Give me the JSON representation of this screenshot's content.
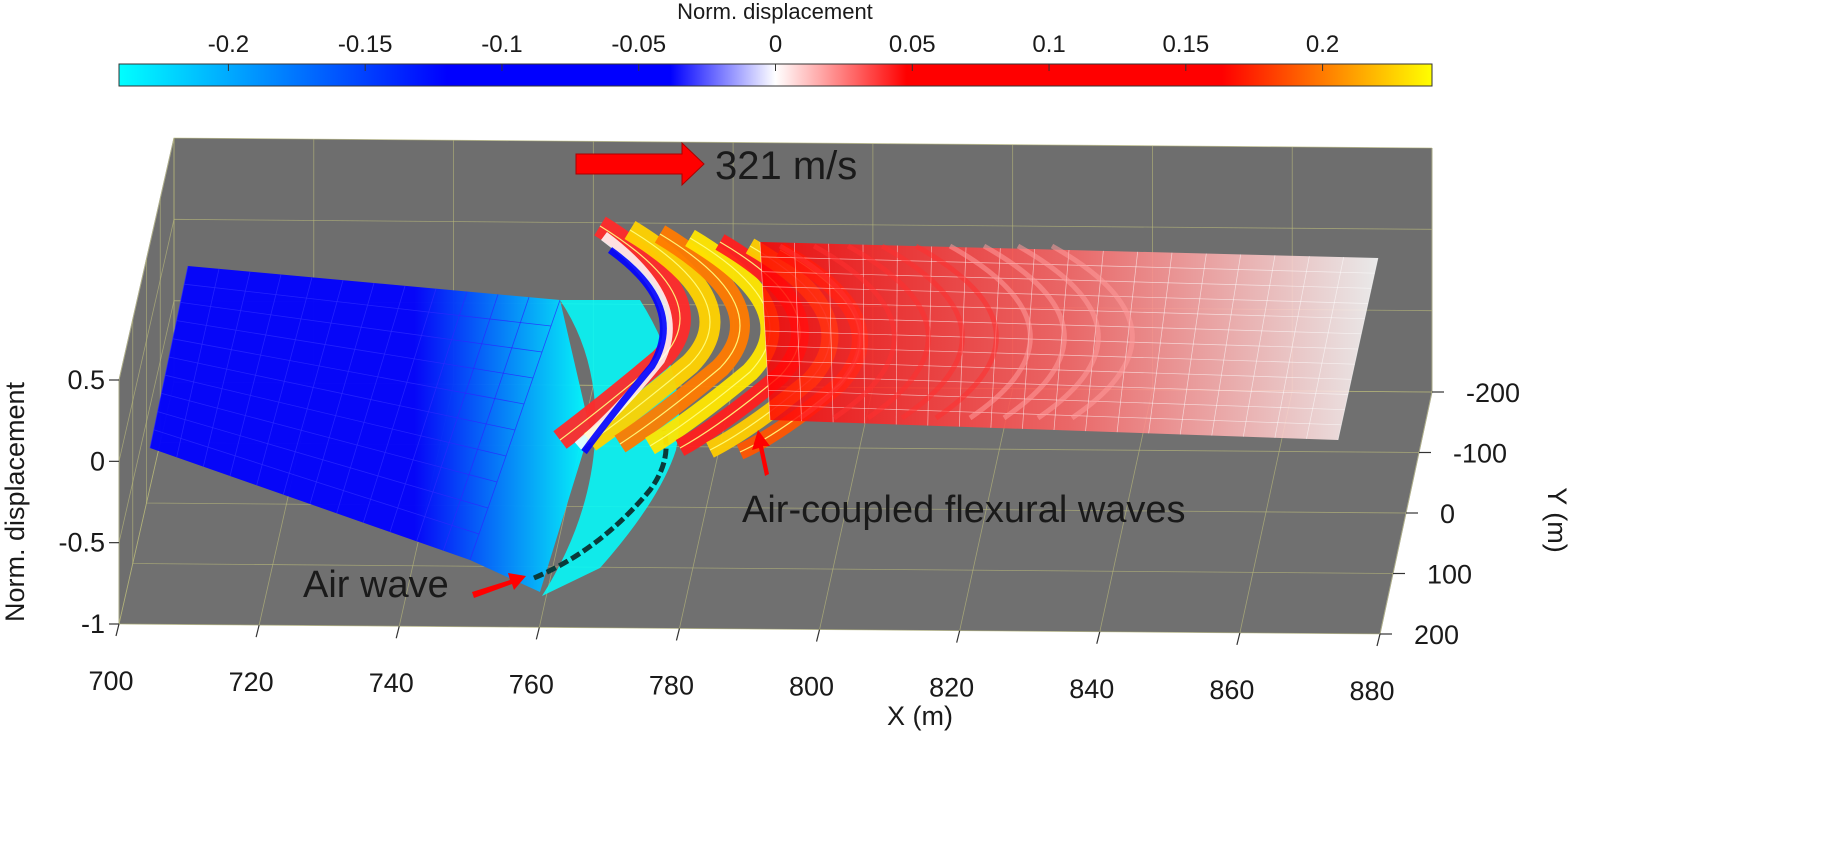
{
  "chart_data": {
    "type": "surface",
    "colorbar": {
      "label": "Norm. displacement",
      "ticks": [
        "-0.2",
        "-0.15",
        "-0.1",
        "-0.05",
        "0",
        "0.05",
        "0.1",
        "0.15",
        "0.2"
      ],
      "range": [
        -0.24,
        0.24
      ],
      "colors": [
        "#00ffff",
        "#0000ff",
        "#ffffff",
        "#ff0000",
        "#ffff00"
      ]
    },
    "xaxis": {
      "label": "X (m)",
      "range": [
        700,
        880
      ],
      "ticks": [
        "700",
        "720",
        "740",
        "760",
        "780",
        "800",
        "820",
        "840",
        "860",
        "880"
      ]
    },
    "yaxis": {
      "label": "Y (m)",
      "range": [
        -200,
        200
      ],
      "ticks": [
        "-200",
        "-100",
        "0",
        "100",
        "200"
      ]
    },
    "zaxis": {
      "label": "Norm. displacement",
      "range": [
        -1,
        0.5
      ],
      "ticks": [
        "0.5",
        "0",
        "-0.5",
        "-1"
      ]
    },
    "grid": true,
    "background_color": "#6e6e6e",
    "surface": {
      "x_range": [
        705,
        878
      ],
      "y_range": [
        -200,
        200
      ],
      "left_region": {
        "x": [
          705,
          758
        ],
        "z": -0.16,
        "color": "#0000ff"
      },
      "drop_region": {
        "x": [
          758,
          770
        ],
        "z_min": -1.0,
        "color": "#00ffff"
      },
      "wave_region": {
        "x": [
          770,
          800
        ],
        "z_max": 0.24,
        "colors": [
          "#ffff00",
          "#ff0000",
          "#ffffff",
          "#0000ff"
        ]
      },
      "tail_region": {
        "x": [
          800,
          878
        ],
        "z": 0.0,
        "colors": [
          "#ff0000",
          "#ffffff"
        ]
      }
    },
    "annotations": [
      {
        "text": "321 m/s",
        "arrow": "right",
        "arrow_color": "#ff0000"
      },
      {
        "text": "Air-coupled flexural waves",
        "arrow": "up",
        "arrow_color": "#ff0000"
      },
      {
        "text": "Air wave",
        "arrow": "up-right",
        "arrow_color": "#ff0000"
      }
    ]
  }
}
